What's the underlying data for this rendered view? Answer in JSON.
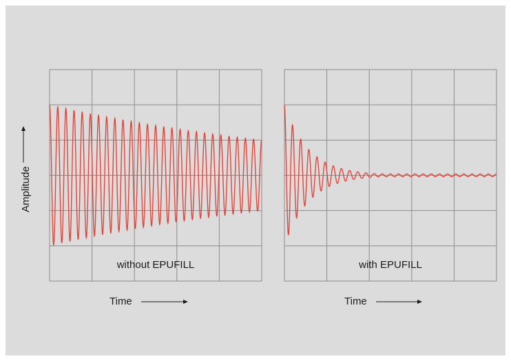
{
  "colors": {
    "background": "#dcdcdc",
    "grid": "#8c8c8c",
    "signal": "#e0443a",
    "text": "#1a1a1a"
  },
  "y_axis_label": "Amplitude",
  "chart_data": [
    {
      "type": "line",
      "annotation": "without EPUFILL",
      "xlabel": "Time",
      "ylabel": "Amplitude",
      "grid": true,
      "xlim": [
        0,
        1
      ],
      "ylim": [
        -1.5,
        1.5
      ],
      "series": [
        {
          "amplitude_start": 1.0,
          "amplitude_end": 0.5,
          "cycles": 26,
          "decay": "slow"
        }
      ]
    },
    {
      "type": "line",
      "annotation": "with EPUFILL",
      "xlabel": "Time",
      "ylabel": "Amplitude",
      "grid": true,
      "xlim": [
        0,
        1
      ],
      "ylim": [
        -1.5,
        1.5
      ],
      "series": [
        {
          "amplitude_start": 1.0,
          "amplitude_end": 0.02,
          "cycles": 26,
          "decay": "fast"
        }
      ]
    }
  ]
}
